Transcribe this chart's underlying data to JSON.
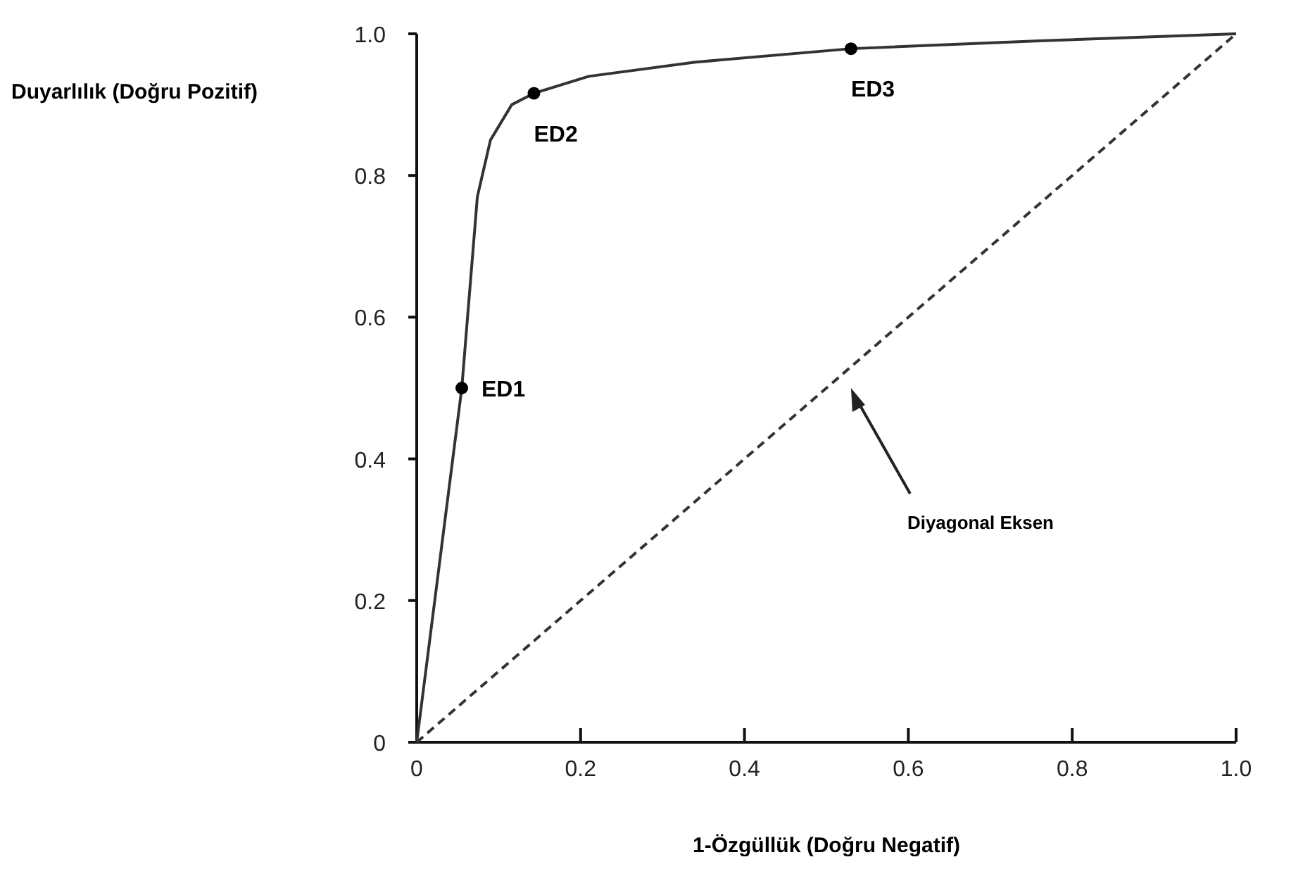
{
  "chart_data": {
    "type": "line",
    "xlabel": "1-Özgüllük (Doğru Negatif)",
    "ylabel": "Duyarlılık (Doğru Pozitif)",
    "xlim": [
      0,
      1
    ],
    "ylim": [
      0,
      1
    ],
    "xticks": [
      0,
      0.2,
      0.4,
      0.6,
      0.8,
      {
        "value": 1,
        "label": "1.0"
      }
    ],
    "yticks": [
      0,
      0.2,
      0.4,
      0.6,
      0.8,
      {
        "value": 1,
        "label": "1.0"
      }
    ],
    "grid": false,
    "series": [
      {
        "color": "#333333",
        "line_style": "solid",
        "x": [
          0,
          0.055,
          0.074,
          0.09,
          0.116,
          0.143,
          0.21,
          0.34,
          0.53,
          0.76,
          1
        ],
        "values": [
          0,
          0.5,
          0.77,
          0.85,
          0.9,
          0.916,
          0.94,
          0.96,
          0.979,
          0.99,
          1
        ]
      },
      {
        "color": "#333333",
        "line_style": "dashed",
        "x": [
          0,
          1
        ],
        "values": [
          0,
          1
        ]
      },
      {
        "type": "scatter",
        "color": "#000000",
        "marker": "circle",
        "x": [
          0.055,
          0.143,
          0.53
        ],
        "values": [
          0.5,
          0.916,
          0.979
        ]
      }
    ],
    "annotations": [
      {
        "text": "ED1",
        "x": 0.055,
        "y": 0.5
      },
      {
        "text": "ED2",
        "x": 0.143,
        "y": 0.916
      },
      {
        "text": "ED3",
        "x": 0.53,
        "y": 0.979
      },
      "Diyagonal Eksen"
    ]
  }
}
